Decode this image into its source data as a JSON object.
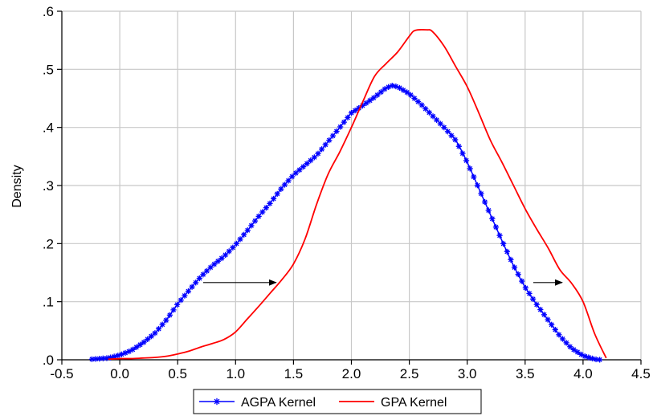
{
  "chart_data": {
    "type": "line",
    "title": "",
    "xlabel": "",
    "ylabel": "Density",
    "xlim": [
      -0.5,
      4.5
    ],
    "ylim": [
      0,
      0.6
    ],
    "x_ticks": [
      -0.5,
      0.0,
      0.5,
      1.0,
      1.5,
      2.0,
      2.5,
      3.0,
      3.5,
      4.0,
      4.5
    ],
    "x_tick_labels": [
      "-0.5",
      "0.0",
      "0.5",
      "1.0",
      "1.5",
      "2.0",
      "2.5",
      "3.0",
      "3.5",
      "4.0",
      "4.5"
    ],
    "y_ticks": [
      0,
      0.1,
      0.2,
      0.3,
      0.4,
      0.5,
      0.6
    ],
    "y_tick_labels": [
      ".0",
      ".1",
      ".2",
      ".3",
      ".4",
      ".5",
      ".6"
    ],
    "grid": true,
    "legend_position": "bottom",
    "series": [
      {
        "name": "AGPA Kernel",
        "color": "#0000ff",
        "marker": "asterisk",
        "x": [
          -0.24,
          -0.1,
          0.0,
          0.1,
          0.2,
          0.3,
          0.4,
          0.5,
          0.6,
          0.7,
          0.8,
          0.9,
          1.0,
          1.1,
          1.2,
          1.3,
          1.4,
          1.5,
          1.6,
          1.7,
          1.8,
          1.9,
          2.0,
          2.1,
          2.2,
          2.3,
          2.35,
          2.4,
          2.5,
          2.6,
          2.7,
          2.8,
          2.9,
          3.0,
          3.1,
          3.2,
          3.3,
          3.4,
          3.5,
          3.6,
          3.7,
          3.8,
          3.9,
          4.0,
          4.1,
          4.15
        ],
        "y": [
          0.001,
          0.003,
          0.008,
          0.016,
          0.029,
          0.045,
          0.068,
          0.096,
          0.12,
          0.143,
          0.162,
          0.178,
          0.198,
          0.222,
          0.247,
          0.27,
          0.296,
          0.318,
          0.335,
          0.352,
          0.376,
          0.4,
          0.425,
          0.438,
          0.452,
          0.468,
          0.472,
          0.47,
          0.458,
          0.44,
          0.42,
          0.4,
          0.378,
          0.34,
          0.295,
          0.25,
          0.205,
          0.162,
          0.125,
          0.095,
          0.068,
          0.041,
          0.02,
          0.007,
          0.001,
          0.0
        ]
      },
      {
        "name": "GPA Kernel",
        "color": "#ff0000",
        "marker": "none",
        "x": [
          -0.1,
          0.0,
          0.1,
          0.2,
          0.3,
          0.4,
          0.5,
          0.6,
          0.7,
          0.8,
          0.9,
          1.0,
          1.1,
          1.2,
          1.3,
          1.4,
          1.5,
          1.6,
          1.7,
          1.8,
          1.9,
          2.0,
          2.1,
          2.2,
          2.3,
          2.4,
          2.5,
          2.55,
          2.65,
          2.7,
          2.8,
          2.9,
          3.0,
          3.1,
          3.2,
          3.3,
          3.4,
          3.5,
          3.6,
          3.7,
          3.8,
          3.9,
          4.0,
          4.1,
          4.2
        ],
        "y": [
          0.001,
          0.002,
          0.002,
          0.003,
          0.004,
          0.006,
          0.01,
          0.015,
          0.022,
          0.028,
          0.035,
          0.048,
          0.07,
          0.092,
          0.115,
          0.138,
          0.165,
          0.208,
          0.268,
          0.32,
          0.358,
          0.4,
          0.445,
          0.488,
          0.51,
          0.53,
          0.557,
          0.567,
          0.568,
          0.565,
          0.54,
          0.505,
          0.47,
          0.425,
          0.378,
          0.34,
          0.3,
          0.26,
          0.225,
          0.192,
          0.155,
          0.132,
          0.1,
          0.045,
          0.003
        ]
      }
    ],
    "annotations": [
      {
        "type": "arrow",
        "from": [
          0.72,
          0.133
        ],
        "to": [
          1.35,
          0.133
        ]
      },
      {
        "type": "arrow",
        "from": [
          3.57,
          0.133
        ],
        "to": [
          3.82,
          0.133
        ]
      }
    ]
  }
}
